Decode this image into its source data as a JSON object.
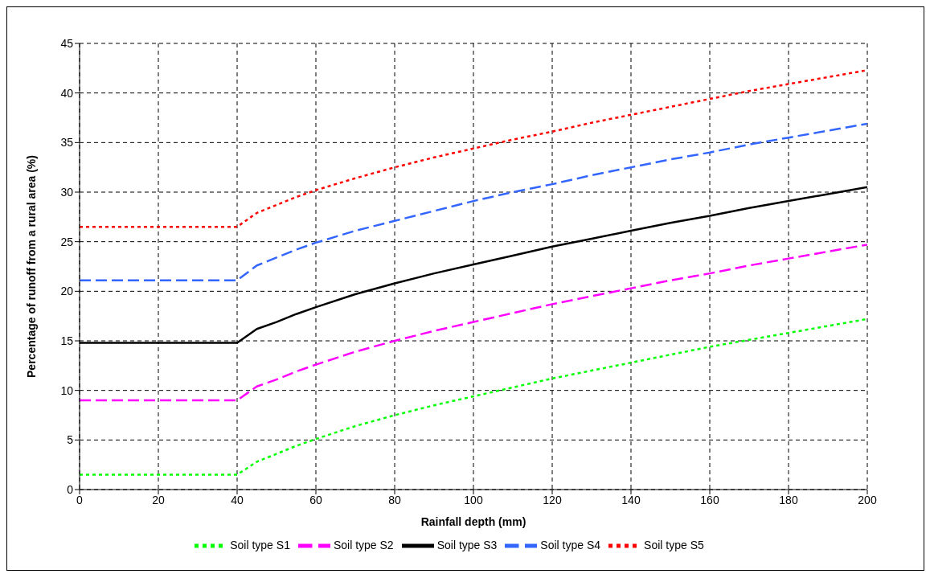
{
  "chart_data": {
    "type": "line",
    "xlabel": "Rainfall depth (mm)",
    "ylabel": "Percentage of runoff from a rural area (%)",
    "x": [
      0,
      10,
      20,
      30,
      40,
      45,
      50,
      55,
      60,
      70,
      80,
      90,
      100,
      110,
      120,
      130,
      140,
      150,
      160,
      170,
      180,
      190,
      200
    ],
    "xlim": [
      0,
      200
    ],
    "xticks": [
      0,
      20,
      40,
      60,
      80,
      100,
      120,
      140,
      160,
      180,
      200
    ],
    "ylim": [
      0,
      45
    ],
    "yticks": [
      0,
      5,
      10,
      15,
      20,
      25,
      30,
      35,
      40,
      45
    ],
    "grid": true,
    "legend": "bottom",
    "marker": "none",
    "series": [
      {
        "name": "Soil type S1",
        "color": "#00ff00",
        "line_style": "dotted",
        "values": [
          1.5,
          1.5,
          1.5,
          1.5,
          1.5,
          2.8,
          3.6,
          4.4,
          5.1,
          6.4,
          7.5,
          8.5,
          9.4,
          10.3,
          11.2,
          12.0,
          12.8,
          13.6,
          14.4,
          15.1,
          15.8,
          16.5,
          17.2
        ]
      },
      {
        "name": "Soil type S2",
        "color": "#ff00ff",
        "line_style": "dashed",
        "values": [
          9.0,
          9.0,
          9.0,
          9.0,
          9.0,
          10.4,
          11.1,
          11.9,
          12.6,
          13.9,
          15.0,
          16.0,
          16.9,
          17.8,
          18.7,
          19.5,
          20.3,
          21.1,
          21.8,
          22.6,
          23.3,
          24.0,
          24.7
        ]
      },
      {
        "name": "Soil type S3",
        "color": "#000000",
        "line_style": "solid",
        "values": [
          14.8,
          14.8,
          14.8,
          14.8,
          14.8,
          16.2,
          16.9,
          17.7,
          18.4,
          19.7,
          20.8,
          21.8,
          22.7,
          23.6,
          24.5,
          25.3,
          26.1,
          26.9,
          27.6,
          28.4,
          29.1,
          29.8,
          30.5
        ]
      },
      {
        "name": "Soil type S4",
        "color": "#3366ff",
        "line_style": "dashed",
        "values": [
          21.1,
          21.1,
          21.1,
          21.1,
          21.1,
          22.6,
          23.4,
          24.2,
          24.9,
          26.1,
          27.1,
          28.1,
          29.1,
          30.0,
          30.8,
          31.7,
          32.5,
          33.3,
          34.0,
          34.8,
          35.5,
          36.2,
          36.9
        ]
      },
      {
        "name": "Soil type S5",
        "color": "#ff0000",
        "line_style": "dotted",
        "values": [
          26.5,
          26.5,
          26.5,
          26.5,
          26.5,
          27.9,
          28.7,
          29.5,
          30.2,
          31.4,
          32.5,
          33.5,
          34.4,
          35.3,
          36.1,
          37.0,
          37.8,
          38.6,
          39.4,
          40.2,
          40.9,
          41.6,
          42.3
        ]
      }
    ]
  }
}
